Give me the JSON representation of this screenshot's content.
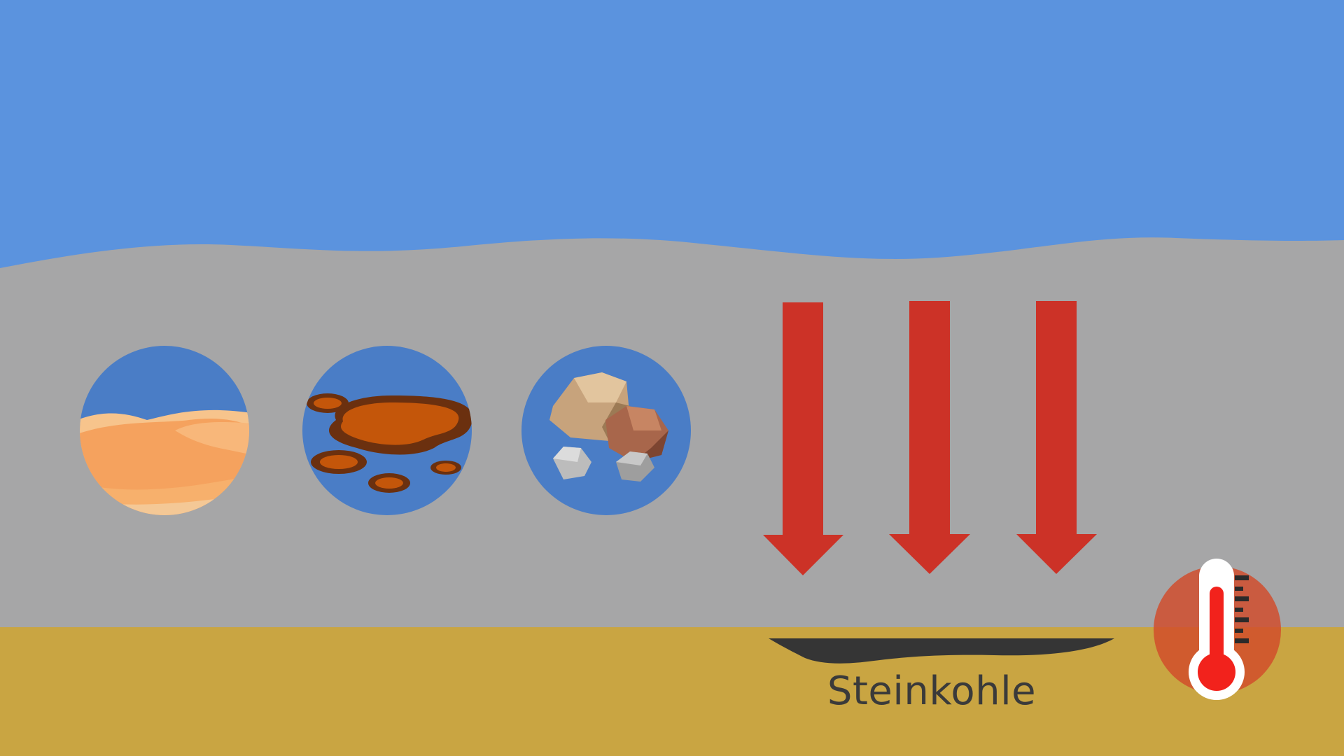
{
  "label": "Steinkohle",
  "icons": [
    "sand-icon",
    "oil-icon",
    "rocks-icon",
    "thermometer-icon"
  ],
  "colors": {
    "sky": "#5b93de",
    "rock_layer": "#a6a6a7",
    "ground": "#c9a542",
    "arrow": "#cc3227",
    "coal": "#353535",
    "circle": "#4a7dc6"
  }
}
